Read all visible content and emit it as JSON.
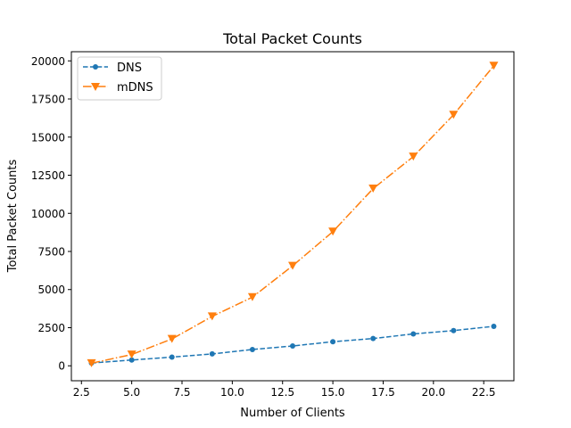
{
  "chart_data": {
    "type": "line",
    "title": "Total Packet Counts",
    "xlabel": "Number of Clients",
    "ylabel": "Total Packet Counts",
    "xlim": [
      2.0,
      24.0
    ],
    "ylim": [
      -980,
      20600
    ],
    "xticks": [
      2.5,
      5.0,
      7.5,
      10.0,
      12.5,
      15.0,
      17.5,
      20.0,
      22.5
    ],
    "xtick_labels": [
      "2.5",
      "5.0",
      "7.5",
      "10.0",
      "12.5",
      "15.0",
      "17.5",
      "20.0",
      "22.5"
    ],
    "yticks": [
      0,
      2500,
      5000,
      7500,
      10000,
      12500,
      15000,
      17500,
      20000
    ],
    "ytick_labels": [
      "0",
      "2500",
      "5000",
      "7500",
      "10000",
      "12500",
      "15000",
      "17500",
      "20000"
    ],
    "grid": false,
    "legend": "top-left",
    "x": [
      3,
      5,
      7,
      9,
      11,
      13,
      15,
      17,
      19,
      21,
      23
    ],
    "series": [
      {
        "name": "DNS",
        "color": "#1f77b4",
        "linestyle": "dashed",
        "marker": "circle",
        "values": [
          180,
          380,
          570,
          780,
          1070,
          1300,
          1580,
          1790,
          2090,
          2310,
          2590
        ]
      },
      {
        "name": "mDNS",
        "color": "#ff7f0e",
        "linestyle": "dashdot",
        "marker": "triangle-down",
        "values": [
          170,
          740,
          1760,
          3240,
          4500,
          6560,
          8800,
          11620,
          13720,
          16460,
          19680
        ]
      }
    ]
  }
}
